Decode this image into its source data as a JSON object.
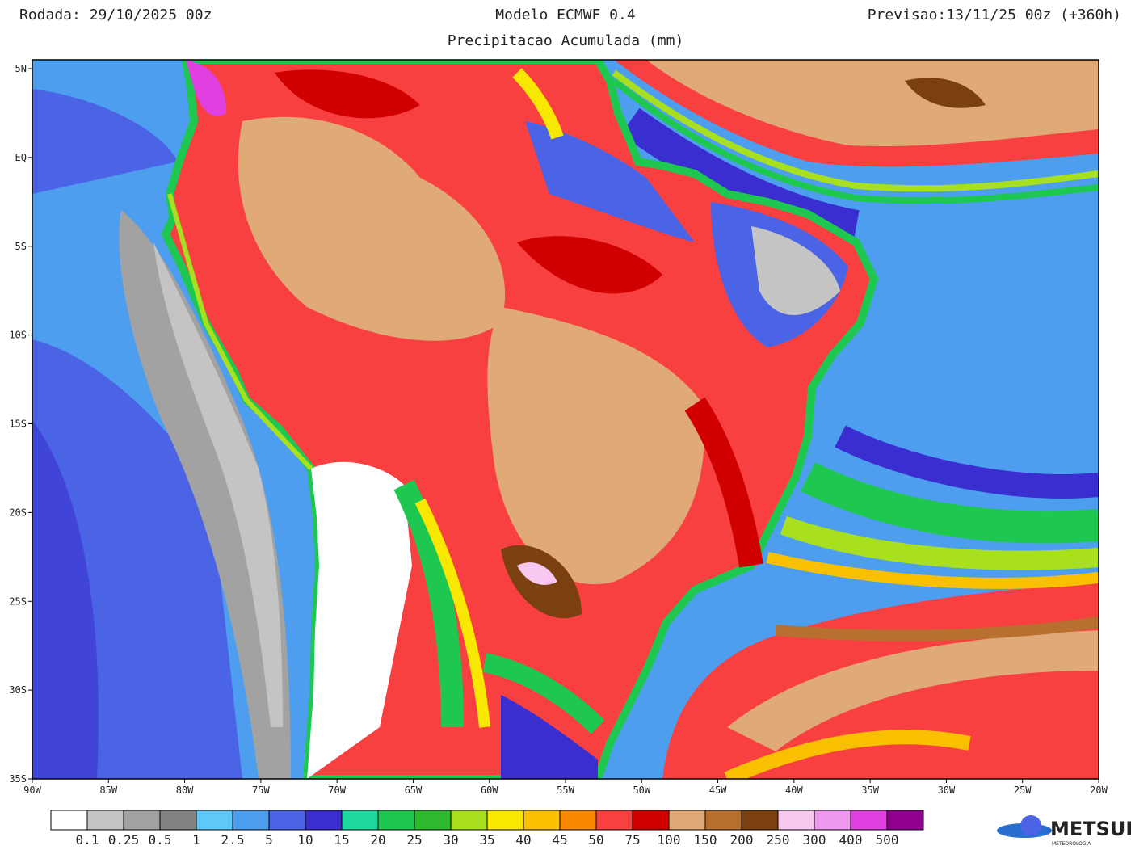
{
  "header": {
    "left": "Rodada: 29/10/2025 00z",
    "center": "Modelo ECMWF 0.4",
    "right": "Previsao:13/11/25 00z (+360h)",
    "subtitle": "Precipitacao Acumulada (mm)"
  },
  "map": {
    "lat_labels": [
      "5N",
      "EQ",
      "5S",
      "10S",
      "15S",
      "20S",
      "25S",
      "30S",
      "35S"
    ],
    "lon_labels": [
      "90W",
      "85W",
      "80W",
      "75W",
      "70W",
      "65W",
      "60W",
      "55W",
      "50W",
      "45W",
      "40W",
      "35W",
      "30W",
      "25W",
      "20W"
    ]
  },
  "colorbar": {
    "colors": [
      "#ffffff",
      "#c4c4c4",
      "#a2a2a2",
      "#828282",
      "#5ec8f7",
      "#4e9ef0",
      "#4b64e6",
      "#3a2ed0",
      "#1ed8a0",
      "#1ec850",
      "#2eb82e",
      "#a8e020",
      "#f8e800",
      "#f8c000",
      "#f88800",
      "#f84040",
      "#d00000",
      "#e0aa78",
      "#b87030",
      "#7a4010",
      "#f8c8f0",
      "#f098f0",
      "#e040e0",
      "#900090"
    ],
    "labels": [
      "0.1",
      "0.25",
      "0.5",
      "1",
      "2.5",
      "5",
      "10",
      "15",
      "20",
      "25",
      "30",
      "35",
      "40",
      "45",
      "50",
      "75",
      "100",
      "150",
      "200",
      "250",
      "300",
      "400",
      "500"
    ]
  },
  "logo": {
    "name": "METSUL",
    "tagline": "METEOROLOGIA"
  }
}
